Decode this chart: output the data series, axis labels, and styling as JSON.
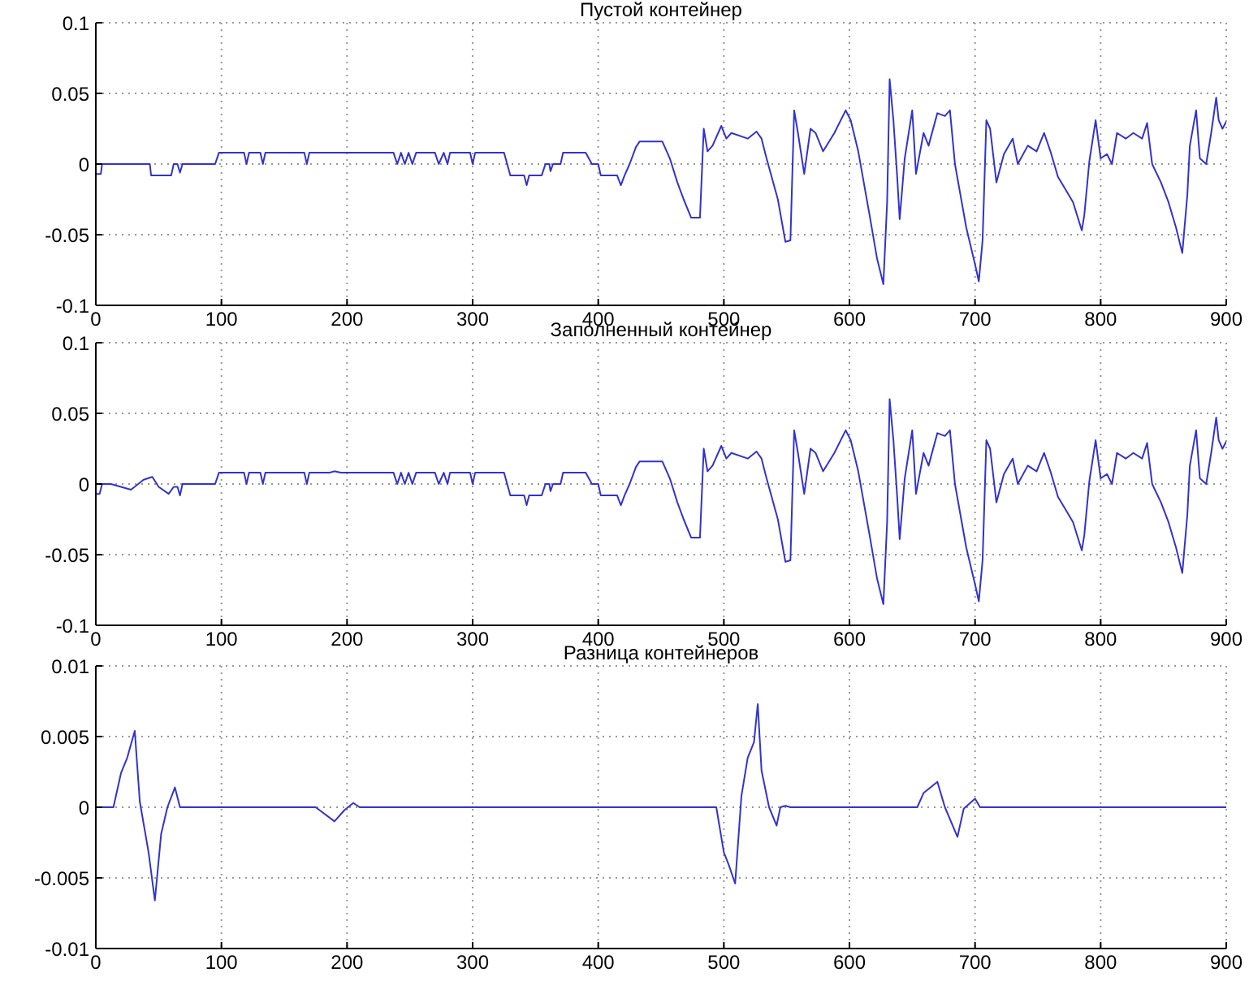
{
  "chart_data": [
    {
      "type": "line",
      "title": "Пустой контейнер",
      "grid": true,
      "xlim": [
        0,
        900
      ],
      "xticks": [
        0,
        100,
        200,
        300,
        400,
        500,
        600,
        700,
        800,
        900
      ],
      "ylim": [
        -0.1,
        0.1
      ],
      "yticks": [
        -0.1,
        -0.05,
        0,
        0.05,
        0.1
      ],
      "x": [
        0,
        4,
        5,
        43,
        44,
        60,
        62,
        65,
        67,
        69,
        95,
        98,
        118,
        120,
        122,
        131,
        133,
        135,
        166,
        168,
        170,
        237,
        240,
        243,
        246,
        249,
        252,
        255,
        270,
        273,
        277,
        280,
        282,
        298,
        300,
        302,
        325,
        330,
        341,
        343,
        345,
        355,
        358,
        361,
        362,
        364,
        370,
        372,
        390,
        395,
        400,
        402,
        415,
        418,
        421,
        425,
        430,
        433,
        451,
        457,
        463,
        468,
        474,
        481,
        484,
        487,
        491,
        498,
        502,
        506,
        519,
        526,
        530,
        534,
        543,
        549,
        553,
        556,
        559,
        564,
        569,
        573,
        579,
        588,
        597,
        601,
        607,
        616,
        622,
        627,
        630,
        632,
        635,
        638,
        640,
        644,
        650,
        653,
        659,
        663,
        670,
        676,
        680,
        684,
        693,
        700,
        703,
        706,
        709,
        712,
        717,
        723,
        730,
        734,
        742,
        749,
        755,
        760,
        766,
        772,
        778,
        785,
        787,
        791,
        796,
        800,
        805,
        809,
        813,
        820,
        826,
        833,
        837,
        841,
        848,
        854,
        860,
        865,
        869,
        871,
        876,
        879,
        884,
        888,
        892,
        894,
        897,
        900
      ],
      "series": [
        {
          "color": "#3333cc",
          "values": [
            -0.007,
            -0.007,
            0,
            0,
            -0.008,
            -0.008,
            0,
            0,
            -0.006,
            0,
            0,
            0.008,
            0.008,
            0,
            0.008,
            0.008,
            0,
            0.008,
            0.008,
            0,
            0.008,
            0.008,
            0,
            0.008,
            0,
            0.008,
            0,
            0.008,
            0.008,
            0,
            0.008,
            0,
            0.008,
            0.008,
            0,
            0.008,
            0.008,
            -0.008,
            -0.008,
            -0.015,
            -0.008,
            -0.008,
            0,
            0,
            -0.005,
            0,
            0,
            0.008,
            0.008,
            0,
            0,
            -0.008,
            -0.008,
            -0.015,
            -0.008,
            0,
            0.012,
            0.016,
            0.016,
            0.004,
            -0.013,
            -0.025,
            -0.038,
            -0.038,
            0.025,
            0.009,
            0.013,
            0.027,
            0.018,
            0.022,
            0.018,
            0.023,
            0.018,
            0.004,
            -0.025,
            -0.055,
            -0.054,
            0.038,
            0.022,
            -0.007,
            0.025,
            0.022,
            0.009,
            0.022,
            0.038,
            0.031,
            0.009,
            -0.036,
            -0.067,
            -0.085,
            -0.027,
            0.06,
            0.031,
            -0.009,
            -0.039,
            0.004,
            0.038,
            -0.007,
            0.022,
            0.013,
            0.036,
            0.034,
            0.038,
            0,
            -0.045,
            -0.071,
            -0.083,
            -0.054,
            0.031,
            0.025,
            -0.013,
            0.007,
            0.018,
            0,
            0.013,
            0.009,
            0.022,
            0.009,
            -0.009,
            -0.018,
            -0.027,
            -0.047,
            -0.036,
            0.002,
            0.031,
            0.004,
            0.007,
            0,
            0.022,
            0.018,
            0.022,
            0.018,
            0.029,
            0,
            -0.013,
            -0.027,
            -0.045,
            -0.063,
            -0.022,
            0.013,
            0.038,
            0.004,
            0,
            0.022,
            0.047,
            0.031,
            0.025,
            0.03
          ]
        }
      ]
    },
    {
      "type": "line",
      "title": "Заполненный контейнер",
      "grid": true,
      "xlim": [
        0,
        900
      ],
      "xticks": [
        0,
        100,
        200,
        300,
        400,
        500,
        600,
        700,
        800,
        900
      ],
      "ylim": [
        -0.1,
        0.1
      ],
      "yticks": [
        -0.1,
        -0.05,
        0,
        0.05,
        0.1
      ],
      "x": [
        0,
        3,
        5,
        12,
        20,
        28,
        38,
        45,
        50,
        58,
        62,
        65,
        67,
        69,
        95,
        98,
        118,
        120,
        122,
        131,
        133,
        135,
        166,
        168,
        170,
        186,
        190,
        195,
        237,
        240,
        243,
        246,
        249,
        252,
        255,
        270,
        273,
        277,
        280,
        282,
        298,
        300,
        302,
        325,
        330,
        341,
        343,
        345,
        355,
        358,
        361,
        362,
        364,
        370,
        372,
        390,
        395,
        400,
        402,
        415,
        418,
        421,
        425,
        430,
        433,
        451,
        457,
        463,
        468,
        474,
        481,
        484,
        487,
        491,
        498,
        502,
        506,
        519,
        526,
        530,
        534,
        543,
        549,
        553,
        556,
        559,
        564,
        569,
        573,
        579,
        588,
        597,
        601,
        607,
        616,
        622,
        627,
        630,
        632,
        635,
        638,
        640,
        644,
        650,
        653,
        659,
        663,
        670,
        676,
        680,
        684,
        693,
        700,
        703,
        706,
        709,
        712,
        717,
        723,
        730,
        734,
        742,
        749,
        755,
        760,
        766,
        772,
        778,
        785,
        787,
        791,
        796,
        800,
        805,
        809,
        813,
        820,
        826,
        833,
        837,
        841,
        848,
        854,
        860,
        865,
        869,
        871,
        876,
        879,
        884,
        888,
        892,
        894,
        897,
        900
      ],
      "series": [
        {
          "color": "#3333cc",
          "values": [
            -0.007,
            -0.007,
            0,
            0,
            -0.002,
            -0.004,
            0.003,
            0.005,
            -0.002,
            -0.007,
            -0.002,
            -0.002,
            -0.008,
            0,
            0,
            0.008,
            0.008,
            0,
            0.008,
            0.008,
            0,
            0.008,
            0.008,
            0,
            0.008,
            0.008,
            0.009,
            0.008,
            0.008,
            0,
            0.008,
            0,
            0.008,
            0,
            0.008,
            0.008,
            0,
            0.008,
            0,
            0.008,
            0.008,
            0,
            0.008,
            0.008,
            -0.008,
            -0.008,
            -0.015,
            -0.008,
            -0.008,
            0,
            0,
            -0.005,
            0,
            0,
            0.008,
            0.008,
            0,
            0,
            -0.008,
            -0.008,
            -0.015,
            -0.008,
            0,
            0.012,
            0.016,
            0.016,
            0.004,
            -0.013,
            -0.025,
            -0.038,
            -0.038,
            0.025,
            0.009,
            0.013,
            0.027,
            0.018,
            0.022,
            0.018,
            0.023,
            0.018,
            0.004,
            -0.025,
            -0.055,
            -0.054,
            0.038,
            0.022,
            -0.007,
            0.025,
            0.022,
            0.009,
            0.022,
            0.038,
            0.031,
            0.009,
            -0.036,
            -0.067,
            -0.085,
            -0.027,
            0.06,
            0.031,
            -0.009,
            -0.039,
            0.004,
            0.038,
            -0.007,
            0.022,
            0.013,
            0.036,
            0.034,
            0.038,
            0,
            -0.045,
            -0.071,
            -0.083,
            -0.054,
            0.031,
            0.025,
            -0.013,
            0.007,
            0.018,
            0,
            0.013,
            0.009,
            0.022,
            0.009,
            -0.009,
            -0.018,
            -0.027,
            -0.047,
            -0.036,
            0.002,
            0.031,
            0.004,
            0.007,
            0,
            0.022,
            0.018,
            0.022,
            0.018,
            0.029,
            0,
            -0.013,
            -0.027,
            -0.045,
            -0.063,
            -0.022,
            0.013,
            0.038,
            0.004,
            0,
            0.022,
            0.047,
            0.031,
            0.025,
            0.03
          ]
        }
      ]
    },
    {
      "type": "line",
      "title": "Разница контейнеров",
      "grid": true,
      "xlim": [
        0,
        900
      ],
      "xticks": [
        0,
        100,
        200,
        300,
        400,
        500,
        600,
        700,
        800,
        900
      ],
      "ylim": [
        -0.01,
        0.01
      ],
      "yticks": [
        -0.01,
        -0.005,
        0,
        0.005,
        0.01
      ],
      "x": [
        0,
        14,
        20,
        25,
        31,
        35,
        42,
        47,
        52,
        57,
        63,
        67,
        72,
        175,
        190,
        198,
        205,
        210,
        494,
        500,
        504,
        509,
        514,
        519,
        524,
        527,
        530,
        536,
        542,
        545,
        549,
        553,
        654,
        659,
        670,
        676,
        686,
        691,
        700,
        704,
        900
      ],
      "series": [
        {
          "color": "#3333cc",
          "values": [
            0,
            0,
            0.0024,
            0.0035,
            0.0054,
            0.0004,
            -0.0032,
            -0.0066,
            -0.0019,
            0,
            0.0014,
            0,
            0,
            0,
            -0.001,
            -0.0002,
            0.0003,
            0,
            0,
            -0.0032,
            -0.0041,
            -0.0054,
            0.0008,
            0.0035,
            0.0046,
            0.0073,
            0.0026,
            0,
            -0.0013,
            0,
            0.0001,
            0,
            0,
            0.001,
            0.0018,
            0,
            -0.0021,
            -0.0001,
            0.0006,
            0,
            0
          ]
        }
      ]
    }
  ]
}
